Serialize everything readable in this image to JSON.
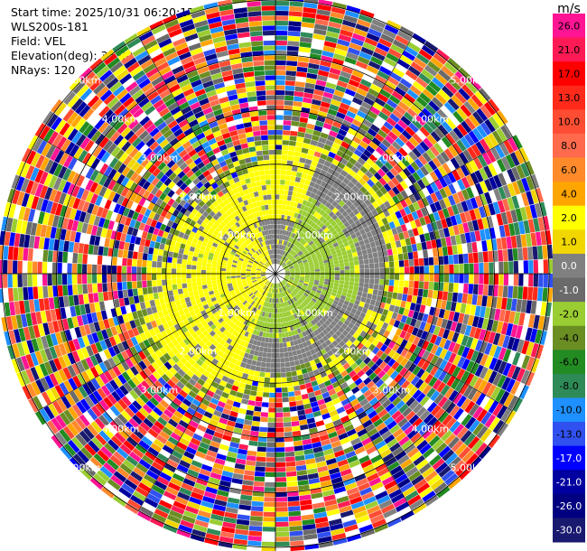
{
  "header": {
    "start_time": "Start time: 2025/10/31 06:20:12",
    "instrument": "WLS200s-181",
    "field": "Field: VEL",
    "elevation": "Elevation(deg): 35.00",
    "nrays": "NRays: 120"
  },
  "chart_data": {
    "type": "heatmap",
    "projection": "polar PPI",
    "field": "VEL",
    "range_ring_labels": [
      "1.00km",
      "2.00km",
      "3.00km",
      "4.00km",
      "5.00km"
    ],
    "range_rings_km": [
      1,
      2,
      3,
      4,
      5
    ],
    "spokes_deg": [
      0,
      30,
      60,
      90,
      120,
      150,
      180,
      210,
      240,
      270,
      300,
      330
    ],
    "max_range_km": 5.0,
    "nrays": 120,
    "colorbar": {
      "unit": "m/s",
      "tick_labels": [
        "26.0",
        "21.0",
        "17.0",
        "13.0",
        "10.0",
        "8.0",
        "6.0",
        "4.0",
        "2.0",
        "1.0",
        "0.0",
        "-1.0",
        "-2.0",
        "-4.0",
        "-6.0",
        "-8.0",
        "-10.0",
        "-13.0",
        "-17.0",
        "-21.0",
        "-26.0",
        "-30.0"
      ],
      "colors": [
        "#ff1493",
        "#ff1a55",
        "#ff0000",
        "#ff2a1a",
        "#ff4d33",
        "#ff6a4d",
        "#ff8a2a",
        "#ffa500",
        "#ffff00",
        "#f2d600",
        "#808080",
        "#6a6a6a",
        "#9acd32",
        "#6b8e23",
        "#228b22",
        "#2e8b57",
        "#1e90ff",
        "#3050f0",
        "#0000ff",
        "#0000a0",
        "#000080",
        "#191970"
      ]
    },
    "near_field": {
      "description_colors": {
        "yellow": "#ffff00",
        "olive": "#9acd32",
        "gray": "#808080",
        "darkgreen": "#6b8e23"
      }
    }
  }
}
